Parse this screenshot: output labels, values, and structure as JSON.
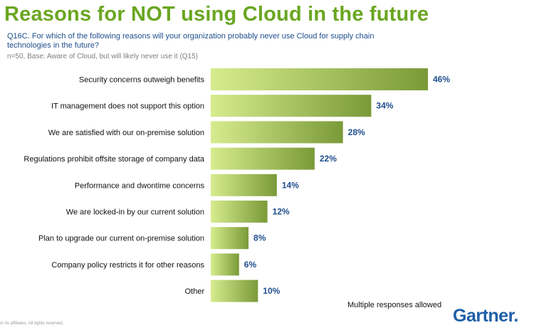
{
  "header": {
    "title": "Reasons for NOT using Cloud in the future",
    "question": "Q16C.  For which of the following reasons will your organization probably never use Cloud for supply chain technologies in the future?",
    "base": "n=50, Base: Aware of Cloud, but will likely never use it (Q15)"
  },
  "footer": {
    "note": "Multiple  responses allowed",
    "copyright": "or its affiliates. All rights reserved.",
    "logo": "Gartner."
  },
  "colors": {
    "title": "#6aa621",
    "bar_light": "#d6ec8e",
    "bar_dark": "#7a9a38",
    "value_label": "#1f4e8c",
    "logo": "#1f5fa8"
  },
  "chart_data": {
    "type": "bar",
    "orientation": "horizontal",
    "categories": [
      "Security concerns outweigh benefits",
      "IT management does not support this option",
      "We are satisfied with our on-premise solution",
      "Regulations prohibit offsite storage of company data",
      "Performance and dwontime concerns",
      "We are locked-in by our current solution",
      "Plan to upgrade our current on-premise solution",
      "Company policy restricts it for other reasons",
      "Other"
    ],
    "values": [
      46,
      34,
      28,
      22,
      14,
      12,
      8,
      6,
      10
    ],
    "value_labels": [
      "46%",
      "34%",
      "28%",
      "22%",
      "14%",
      "12%",
      "8%",
      "6%",
      "10%"
    ],
    "unit": "%",
    "xlim": [
      0,
      46
    ],
    "grid": false,
    "legend": "none"
  }
}
